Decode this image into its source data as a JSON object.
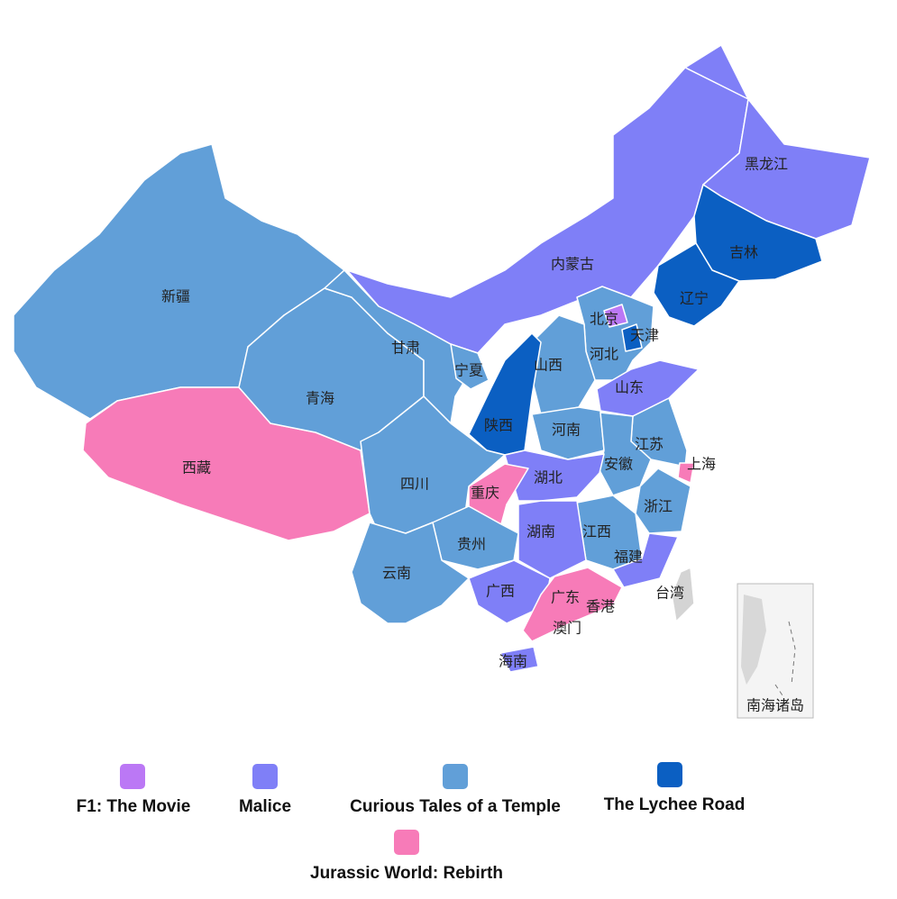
{
  "map": {
    "provinces": [
      {
        "name": "新疆",
        "movie": "Curious Tales of a Temple"
      },
      {
        "name": "西藏",
        "movie": "Jurassic World: Rebirth"
      },
      {
        "name": "青海",
        "movie": "Curious Tales of a Temple"
      },
      {
        "name": "甘肃",
        "movie": "Curious Tales of a Temple"
      },
      {
        "name": "内蒙古",
        "movie": "Malice"
      },
      {
        "name": "黑龙江",
        "movie": "Malice"
      },
      {
        "name": "吉林",
        "movie": "The Lychee Road"
      },
      {
        "name": "辽宁",
        "movie": "The Lychee Road"
      },
      {
        "name": "河北",
        "movie": "Curious Tales of a Temple"
      },
      {
        "name": "北京",
        "movie": "F1: The Movie"
      },
      {
        "name": "天津",
        "movie": "The Lychee Road"
      },
      {
        "name": "山西",
        "movie": "Curious Tales of a Temple"
      },
      {
        "name": "山东",
        "movie": "Malice"
      },
      {
        "name": "宁夏",
        "movie": "Curious Tales of a Temple"
      },
      {
        "name": "陕西",
        "movie": "The Lychee Road"
      },
      {
        "name": "河南",
        "movie": "Curious Tales of a Temple"
      },
      {
        "name": "江苏",
        "movie": "Curious Tales of a Temple"
      },
      {
        "name": "上海",
        "movie": "Jurassic World: Rebirth"
      },
      {
        "name": "安徽",
        "movie": "Curious Tales of a Temple"
      },
      {
        "name": "湖北",
        "movie": "Malice"
      },
      {
        "name": "重庆",
        "movie": "Jurassic World: Rebirth"
      },
      {
        "name": "四川",
        "movie": "Curious Tales of a Temple"
      },
      {
        "name": "浙江",
        "movie": "Curious Tales of a Temple"
      },
      {
        "name": "江西",
        "movie": "Curious Tales of a Temple"
      },
      {
        "name": "湖南",
        "movie": "Malice"
      },
      {
        "name": "福建",
        "movie": "Malice"
      },
      {
        "name": "贵州",
        "movie": "Curious Tales of a Temple"
      },
      {
        "name": "云南",
        "movie": "Curious Tales of a Temple"
      },
      {
        "name": "广西",
        "movie": "Malice"
      },
      {
        "name": "广东",
        "movie": "Jurassic World: Rebirth"
      },
      {
        "name": "海南",
        "movie": "Malice"
      },
      {
        "name": "台湾"
      },
      {
        "name": "香港"
      },
      {
        "name": "澳门"
      }
    ],
    "inset_label": "南海诸岛",
    "legend": [
      {
        "name": "F1: The Movie",
        "color": "#bb78f5"
      },
      {
        "name": "Malice",
        "color": "#7f7ff7"
      },
      {
        "name": "Curious Tales of a Temple",
        "color": "#619fd8"
      },
      {
        "name": "The Lychee Road",
        "color": "#0b5fc2"
      },
      {
        "name": "Jurassic World: Rebirth",
        "color": "#f77bb8"
      }
    ]
  }
}
